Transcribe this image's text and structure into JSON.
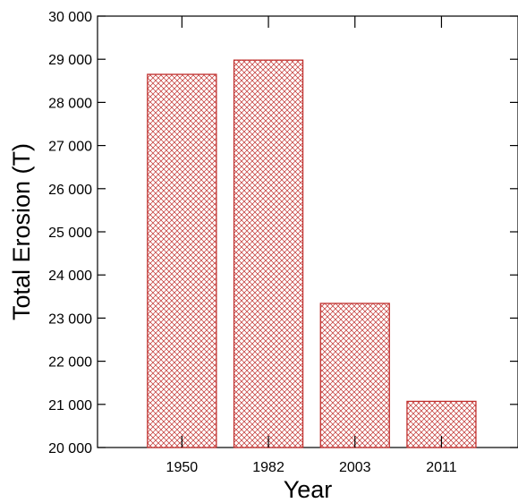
{
  "chart_data": {
    "type": "bar",
    "title": "",
    "xlabel": "Year",
    "ylabel": "Total Erosion (T)",
    "categories": [
      "1950",
      "1982",
      "2003",
      "2011"
    ],
    "values": [
      28650,
      28980,
      23340,
      21070
    ],
    "ylim": [
      20000,
      30000
    ],
    "yticks": [
      20000,
      21000,
      22000,
      23000,
      24000,
      25000,
      26000,
      27000,
      28000,
      29000,
      30000
    ],
    "ytick_labels": [
      "20 000",
      "21 000",
      "22 000",
      "23 000",
      "24 000",
      "25 000",
      "26 000",
      "27 000",
      "28 000",
      "29 000",
      "30 000"
    ],
    "grid": false,
    "legend": "none",
    "bar_style": "cross-hatched",
    "colors": {
      "bar_outline": "#c0302e",
      "hatch": "#c0302e",
      "axis": "#000000"
    }
  }
}
